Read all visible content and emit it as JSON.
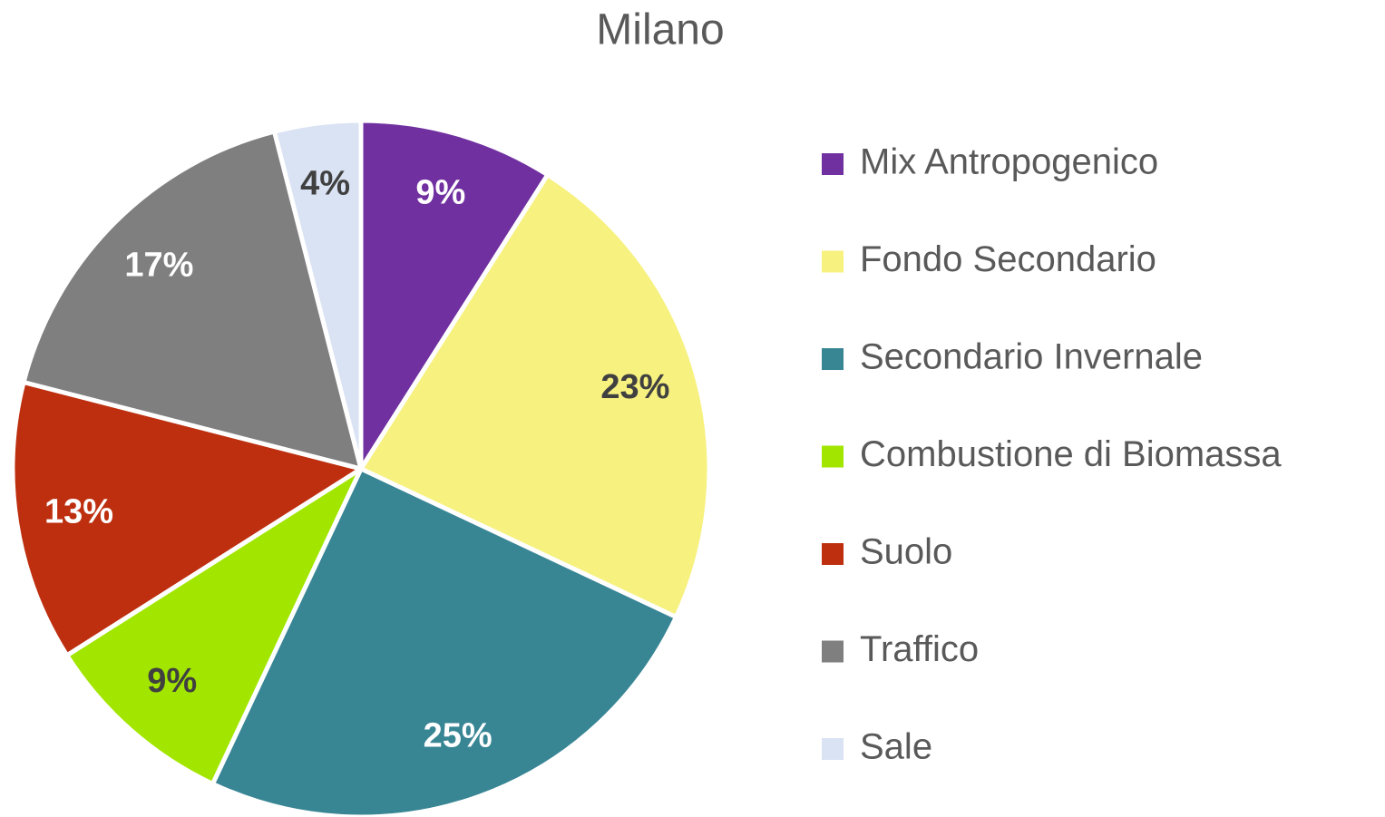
{
  "chart_data": {
    "type": "pie",
    "title": "Milano",
    "categories": [
      "Mix Antropogenico",
      "Fondo Secondario",
      "Secondario Invernale",
      "Combustione di Biomassa",
      "Suolo",
      "Traffico",
      "Sale"
    ],
    "values": [
      9,
      23,
      25,
      9,
      13,
      17,
      4
    ],
    "value_labels": [
      "9%",
      "23%",
      "25%",
      "9%",
      "13%",
      "17%",
      "4%"
    ],
    "colors": [
      "#7030a0",
      "#f7f17f",
      "#388594",
      "#a2e600",
      "#bd2f0f",
      "#7f7f7f",
      "#dae3f3"
    ],
    "legend": "right"
  }
}
